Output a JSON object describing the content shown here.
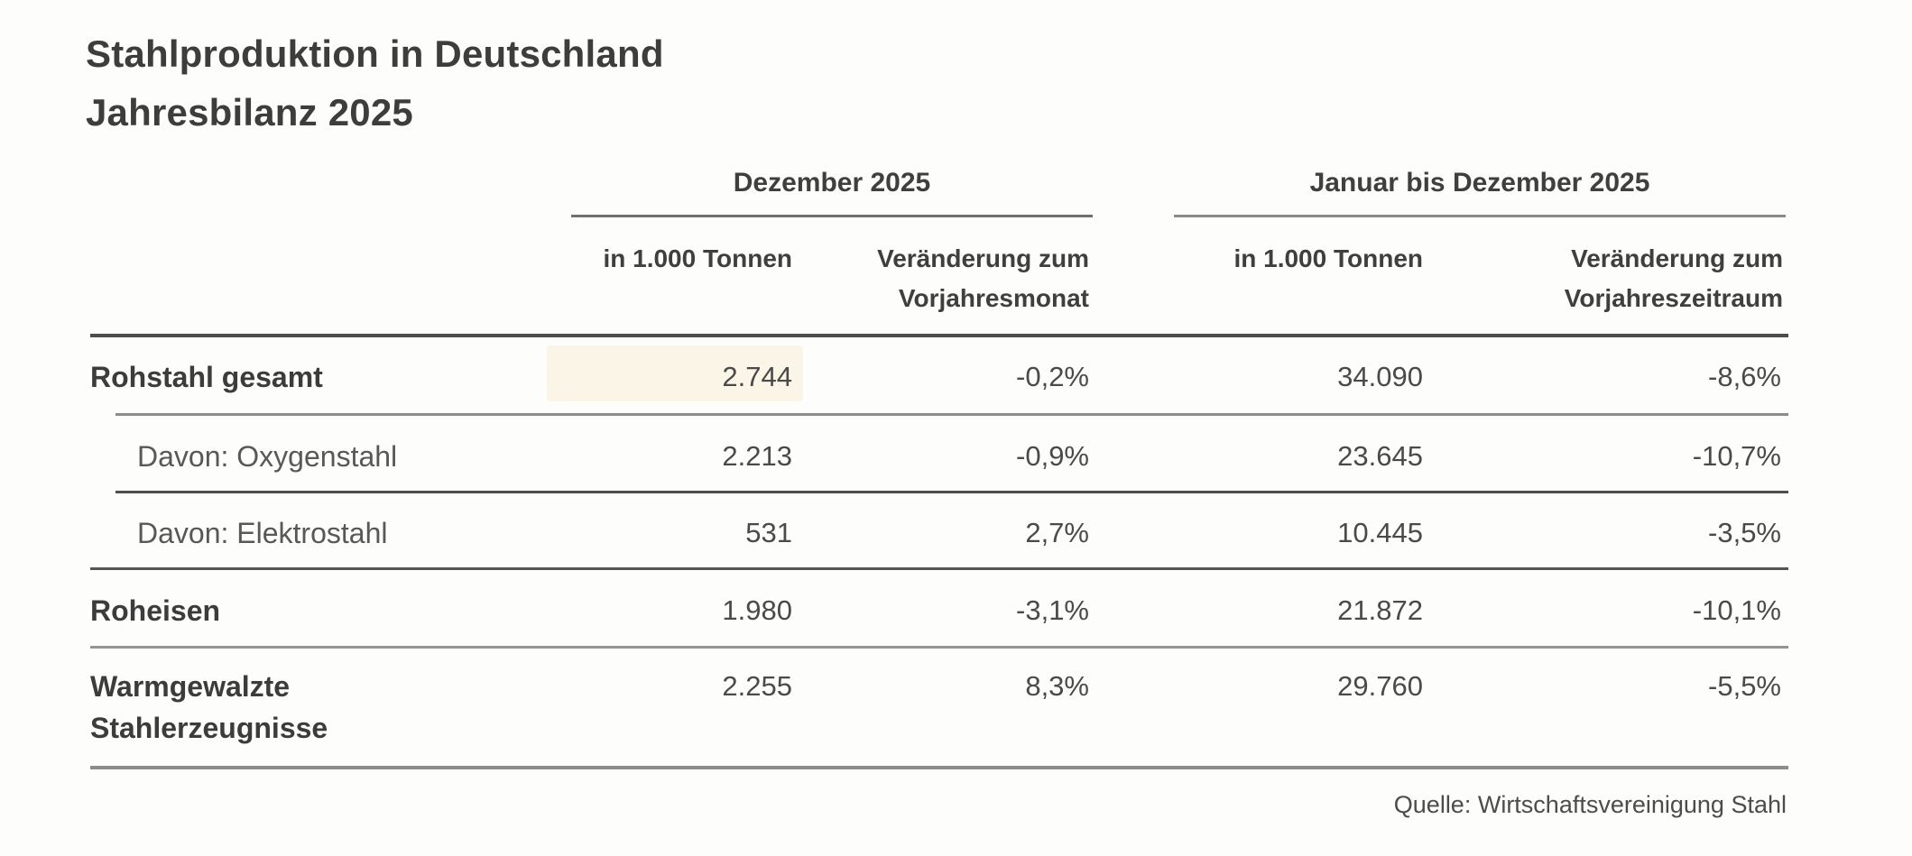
{
  "title": {
    "line1": "Stahlproduktion in Deutschland",
    "line2": "Jahresbilanz 2025"
  },
  "chart_data": {
    "type": "table",
    "title": "Stahlproduktion in Deutschland Jahresbilanz 2025",
    "column_groups": [
      {
        "label": "Dezember 2025",
        "columns": [
          "in 1.000 Tonnen",
          "Veränderung zum Vorjahresmonat"
        ]
      },
      {
        "label": "Januar bis Dezember 2025",
        "columns": [
          "in 1.000 Tonnen",
          "Veränderung zum Vorjahreszeitraum"
        ]
      }
    ],
    "rows": [
      {
        "label": "Rohstahl gesamt",
        "indent": false,
        "values": [
          "2.744",
          "-0,2%",
          "34.090",
          "-8,6%"
        ]
      },
      {
        "label": "Davon: Oxygenstahl",
        "indent": true,
        "values": [
          "2.213",
          "-0,9%",
          "23.645",
          "-10,7%"
        ]
      },
      {
        "label": "Davon: Elektrostahl",
        "indent": true,
        "values": [
          "531",
          "2,7%",
          "10.445",
          "-3,5%"
        ]
      },
      {
        "label": "Roheisen",
        "indent": false,
        "values": [
          "1.980",
          "-3,1%",
          "21.872",
          "-10,1%"
        ]
      },
      {
        "label": "Warmgewalzte Stahlerzeugnisse",
        "indent": false,
        "values": [
          "2.255",
          "8,3%",
          "29.760",
          "-5,5%"
        ]
      }
    ],
    "source": "Quelle: Wirtschaftsvereinigung Stahl"
  },
  "colors": {
    "background": "#fdfdfc",
    "text_dark": "#3d3d3d",
    "text_regular": "#4a4a4a",
    "rule_dark": "#4d4d4d",
    "rule_gray": "#8c8c8c",
    "highlight": "#f7eed3"
  }
}
